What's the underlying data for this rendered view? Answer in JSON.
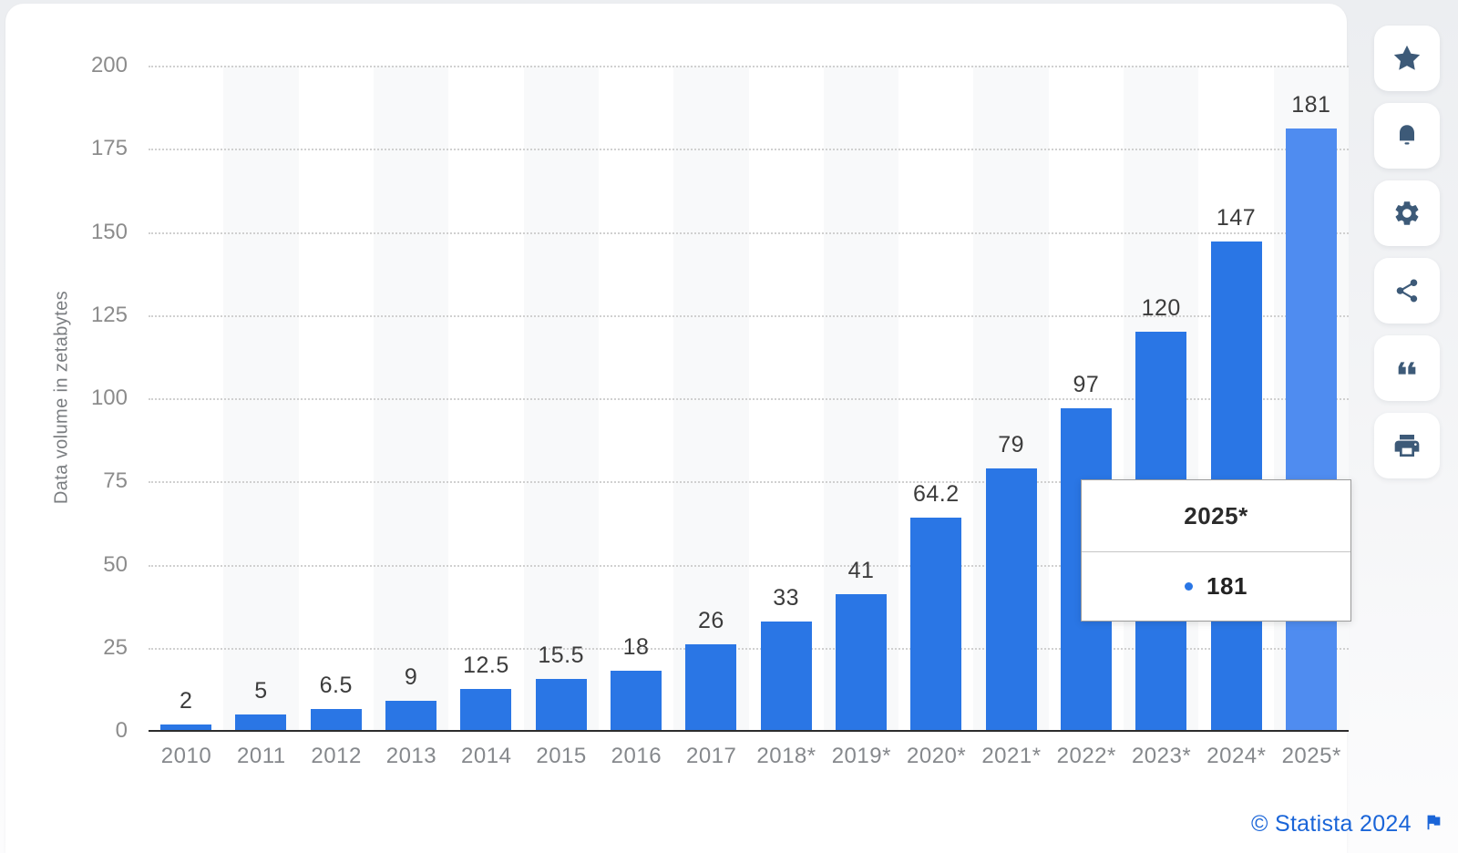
{
  "chart_data": {
    "type": "bar",
    "categories": [
      "2010",
      "2011",
      "2012",
      "2013",
      "2014",
      "2015",
      "2016",
      "2017",
      "2018*",
      "2019*",
      "2020*",
      "2021*",
      "2022*",
      "2023*",
      "2024*",
      "2025*"
    ],
    "values": [
      2,
      5,
      6.5,
      9,
      12.5,
      15.5,
      18,
      26,
      33,
      41,
      64.2,
      79,
      97,
      120,
      147,
      181
    ],
    "value_labels": [
      "2",
      "5",
      "6.5",
      "9",
      "12.5",
      "15.5",
      "18",
      "26",
      "33",
      "41",
      "64.2",
      "79",
      "97",
      "120",
      "147",
      "181"
    ],
    "title": "",
    "xlabel": "",
    "ylabel": "Data volume in zetabytes",
    "yticks": [
      0,
      25,
      50,
      75,
      100,
      125,
      150,
      175,
      200
    ],
    "ylim": [
      0,
      200
    ],
    "grid": "horizontal-dotted",
    "legend": "none",
    "bar_color": "#2a76e5",
    "highlight_color": "#4f8cf0",
    "highlighted_index": 15,
    "band_color": "#f8f9fa",
    "alternating_bands": "odd-columns"
  },
  "tooltip": {
    "title": "2025*",
    "value": "181",
    "dot_color": "#2a76e5"
  },
  "toolbar": {
    "buttons": [
      {
        "name": "favorite",
        "icon": "star-icon"
      },
      {
        "name": "notifications",
        "icon": "bell-icon"
      },
      {
        "name": "settings",
        "icon": "gear-icon"
      },
      {
        "name": "share",
        "icon": "share-icon"
      },
      {
        "name": "cite",
        "icon": "quote-icon"
      },
      {
        "name": "print",
        "icon": "printer-icon"
      }
    ],
    "icon_color": "#3d5a78"
  },
  "credit": {
    "text": "© Statista 2024",
    "color": "#1a65d8",
    "flag_icon": "flag-icon"
  }
}
